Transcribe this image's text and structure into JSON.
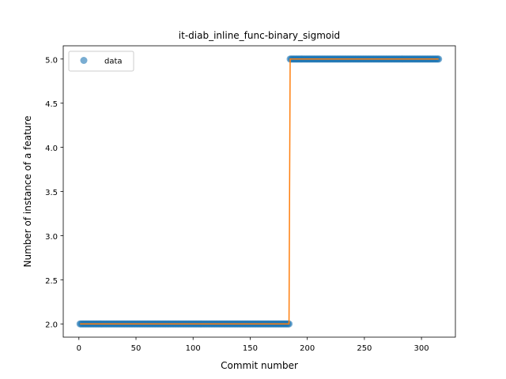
{
  "chart_data": {
    "type": "line",
    "title": "it-diab_inline_func-binary_sigmoid",
    "xlabel": "Commit number",
    "ylabel": "Number of instance of a feature",
    "xlim": [
      -13.7,
      329.7
    ],
    "ylim": [
      1.85,
      5.15
    ],
    "xticks": [
      0,
      50,
      100,
      150,
      200,
      250,
      300
    ],
    "yticks": [
      2.0,
      2.5,
      3.0,
      3.5,
      4.0,
      4.5,
      5.0
    ],
    "ytick_labels": [
      "2.0",
      "2.5",
      "3.0",
      "3.5",
      "4.0",
      "4.5",
      "5.0"
    ],
    "grid": false,
    "legend": {
      "placement": "top-left",
      "entries": [
        "data"
      ]
    },
    "series": [
      {
        "name": "data",
        "style": "markers",
        "color": "#1f77b4",
        "segments": [
          {
            "x_start": 1,
            "x_end": 184,
            "y": 2
          },
          {
            "x_start": 185,
            "x_end": 315,
            "y": 5
          }
        ]
      },
      {
        "style": "line",
        "color": "#ff7f0e",
        "x": [
          1,
          184,
          185,
          315
        ],
        "y": [
          2,
          2,
          5,
          5
        ]
      }
    ]
  }
}
